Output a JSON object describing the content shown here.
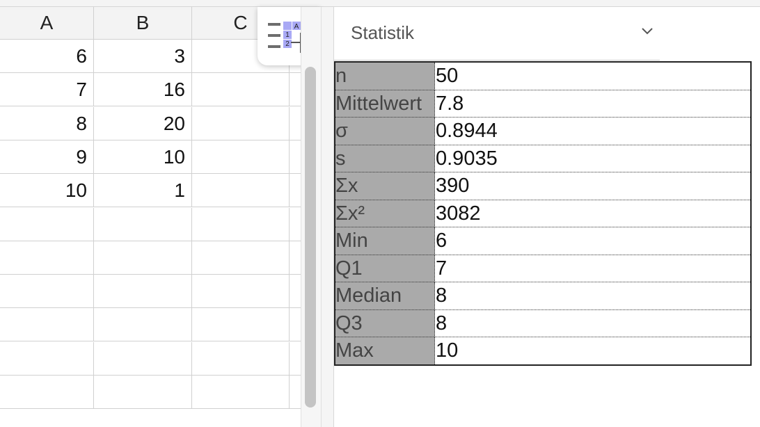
{
  "sheet": {
    "columns": [
      "A",
      "B",
      "C"
    ],
    "rows": [
      [
        "6",
        "3",
        ""
      ],
      [
        "7",
        "16",
        ""
      ],
      [
        "8",
        "20",
        ""
      ],
      [
        "9",
        "10",
        ""
      ],
      [
        "10",
        "1",
        ""
      ],
      [
        "",
        "",
        ""
      ],
      [
        "",
        "",
        ""
      ],
      [
        "",
        "",
        ""
      ],
      [
        "",
        "",
        ""
      ],
      [
        "",
        "",
        ""
      ],
      [
        "",
        "",
        ""
      ]
    ]
  },
  "toolbar": {
    "floating_icon": "spreadsheet-tools-icon",
    "icon_badge_a": "A",
    "icon_badge_b": "B",
    "icon_row_1": "1",
    "icon_row_2": "2"
  },
  "panel": {
    "dropdown_label": "Statistik",
    "dropdown_icon": "chevron-down-icon",
    "stats": [
      {
        "key": "n",
        "value": "50"
      },
      {
        "key": "Mittelwert",
        "value": "7.8"
      },
      {
        "key": "σ",
        "value": "0.8944"
      },
      {
        "key": "s",
        "value": "0.9035"
      },
      {
        "key": "Σx",
        "value": "390"
      },
      {
        "key": "Σx²",
        "value": "3082"
      },
      {
        "key": "Min",
        "value": "6"
      },
      {
        "key": "Q1",
        "value": "7"
      },
      {
        "key": "Median",
        "value": "8"
      },
      {
        "key": "Q3",
        "value": "8"
      },
      {
        "key": "Max",
        "value": "10"
      }
    ]
  },
  "colors": {
    "key_cell_bg": "#aaaaaa",
    "badge_blue": "#a9a9f5",
    "grid_line": "#d0d0d0"
  }
}
